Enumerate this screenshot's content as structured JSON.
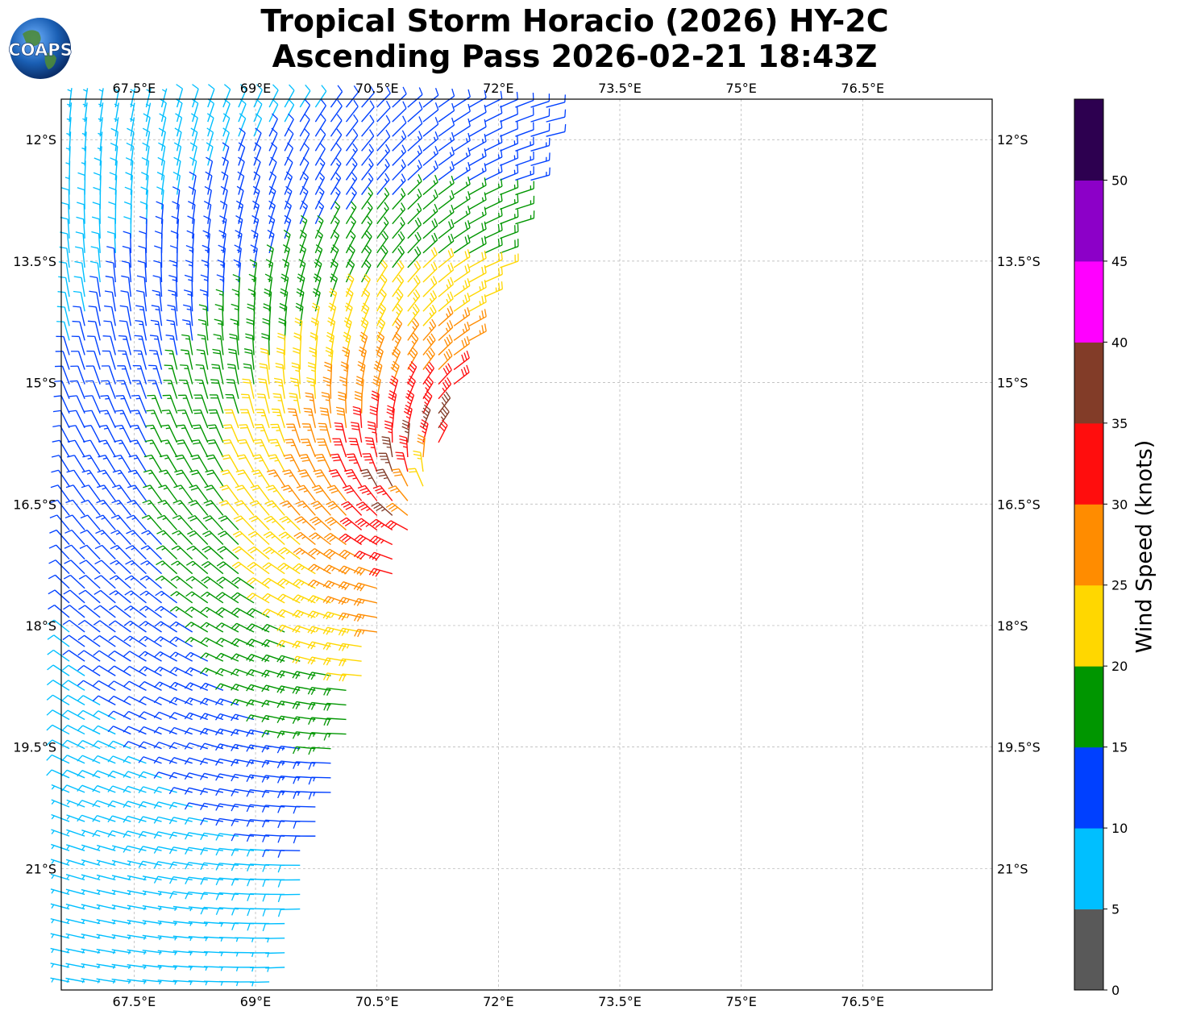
{
  "title": {
    "line1": "Tropical Storm Horacio (2026) HY-2C",
    "line2": "Ascending Pass 2026-02-21 18:43Z"
  },
  "logo": {
    "text": "COAPS"
  },
  "map": {
    "lon_range": [
      66.6,
      78.1
    ],
    "lat_range": [
      -22.5,
      -11.5
    ],
    "lon_ticks": [
      67.5,
      69,
      70.5,
      72,
      73.5,
      75,
      76.5
    ],
    "lon_tick_labels": [
      "67.5°E",
      "69°E",
      "70.5°E",
      "72°E",
      "73.5°E",
      "75°E",
      "76.5°E"
    ],
    "lat_ticks": [
      -12,
      -13.5,
      -15,
      -16.5,
      -18,
      -19.5,
      -21
    ],
    "lat_tick_labels": [
      "12°S",
      "13.5°S",
      "15°S",
      "16.5°S",
      "18°S",
      "19.5°S",
      "21°S"
    ],
    "grid": true
  },
  "chart_data": {
    "type": "wind_barbs",
    "title": "Tropical Storm Horacio (2026) HY-2C Ascending Pass 2026-02-21 18:43Z",
    "units": "knots",
    "storm_center_approx": {
      "lon": 71.6,
      "lat": -16.4
    },
    "swath_east_edge": [
      [
        72.8,
        -11.5
      ],
      [
        71.5,
        -15.0
      ],
      [
        70.6,
        -17.8
      ],
      [
        69.8,
        -20.5
      ],
      [
        69.3,
        -22.5
      ]
    ],
    "max_wind_approx": 37
  },
  "colorbar": {
    "label": "Wind Speed (knots)",
    "ticks": [
      "0",
      "5",
      "10",
      "15",
      "20",
      "25",
      "30",
      "35",
      "40",
      "45",
      "50"
    ],
    "bins": [
      {
        "from": 0,
        "to": 5,
        "color": "#595959"
      },
      {
        "from": 5,
        "to": 10,
        "color": "#00bfff"
      },
      {
        "from": 10,
        "to": 15,
        "color": "#0040ff"
      },
      {
        "from": 15,
        "to": 20,
        "color": "#009600"
      },
      {
        "from": 20,
        "to": 25,
        "color": "#ffd700"
      },
      {
        "from": 25,
        "to": 30,
        "color": "#ff8c00"
      },
      {
        "from": 30,
        "to": 35,
        "color": "#ff0d0d"
      },
      {
        "from": 35,
        "to": 40,
        "color": "#823c28"
      },
      {
        "from": 40,
        "to": 45,
        "color": "#ff00ff"
      },
      {
        "from": 45,
        "to": 50,
        "color": "#8c00c8"
      },
      {
        "from": 50,
        "to": 55,
        "color": "#2d0050"
      }
    ]
  }
}
